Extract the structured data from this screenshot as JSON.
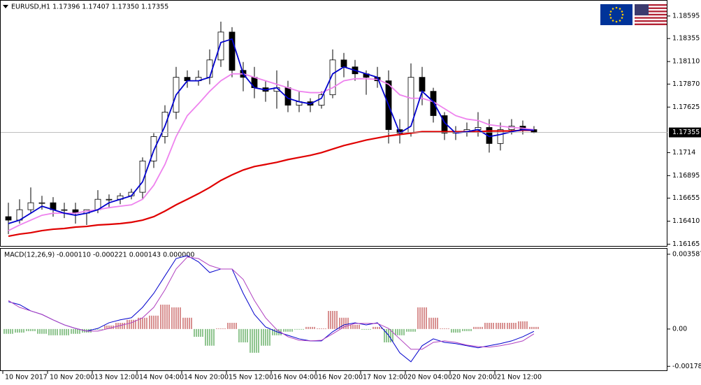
{
  "chart_data": [
    {
      "type": "candlestick",
      "title": "EURUSD,H1  1.17396 1.17407 1.17350 1.17355",
      "categories": [
        "10 Nov 2017",
        null,
        null,
        null,
        "10 Nov 20:00",
        null,
        null,
        null,
        "13 Nov 12:00",
        null,
        null,
        null,
        "14 Nov 04:00",
        null,
        null,
        null,
        "14 Nov 20:00",
        null,
        null,
        null,
        "15 Nov 12:00",
        null,
        null,
        null,
        "16 Nov 04:00",
        null,
        null,
        null,
        "16 Nov 20:00",
        null,
        null,
        null,
        "17 Nov 12:00",
        null,
        null,
        null,
        "20 Nov 04:00",
        null,
        null,
        null,
        "20 Nov 20:00",
        null,
        null,
        null,
        "21 Nov 12:00",
        null,
        null,
        null
      ],
      "open": [
        1.16458,
        1.16421,
        1.16532,
        1.16606,
        1.16606,
        1.16532,
        1.16532,
        1.16495,
        1.16532,
        1.16643,
        1.16643,
        1.1668,
        1.16718,
        1.17051,
        1.17311,
        1.17571,
        1.17942,
        1.17905,
        1.17942,
        1.18127,
        1.18424,
        1.18016,
        1.17942,
        1.17831,
        1.17793,
        1.17831,
        1.17645,
        1.17682,
        1.17645,
        1.17756,
        1.18127,
        1.18053,
        1.17979,
        1.17942,
        1.17905,
        1.17385,
        1.17348,
        1.17942,
        1.17793,
        1.17534,
        1.17348,
        1.17363,
        1.17385,
        1.17408,
        1.17237,
        1.17385,
        1.17422,
        1.17385
      ],
      "high": [
        1.16606,
        1.16643,
        1.16769,
        1.1668,
        1.16666,
        1.16606,
        1.16606,
        1.16532,
        1.1674,
        1.16695,
        1.1671,
        1.16755,
        1.17089,
        1.17348,
        1.17645,
        1.18053,
        1.18016,
        1.18016,
        1.18239,
        1.18535,
        1.18476,
        1.18105,
        1.18053,
        1.17905,
        1.18016,
        1.17905,
        1.17793,
        1.17719,
        1.17793,
        1.18239,
        1.18202,
        1.18127,
        1.18016,
        1.18053,
        1.18016,
        1.17497,
        1.1809,
        1.18053,
        1.17831,
        1.17571,
        1.17422,
        1.1746,
        1.17571,
        1.17497,
        1.1746,
        1.17497,
        1.17482,
        1.17422
      ],
      "low": [
        1.16272,
        1.16384,
        1.16495,
        1.16532,
        1.16458,
        1.16443,
        1.16384,
        1.16369,
        1.16495,
        1.16547,
        1.16591,
        1.16643,
        1.16643,
        1.16977,
        1.17237,
        1.17497,
        1.17831,
        1.17853,
        1.17868,
        1.18053,
        1.17942,
        1.17793,
        1.17719,
        1.17682,
        1.17608,
        1.17571,
        1.17571,
        1.17571,
        1.17608,
        1.17719,
        1.17942,
        1.17905,
        1.17756,
        1.17831,
        1.17237,
        1.17237,
        1.17311,
        1.17645,
        1.1746,
        1.17274,
        1.17274,
        1.17311,
        1.17311,
        1.1714,
        1.17163,
        1.17333,
        1.17333,
        1.17348
      ],
      "close": [
        1.16421,
        1.16532,
        1.16606,
        1.16606,
        1.16532,
        1.16532,
        1.16495,
        1.16532,
        1.16643,
        1.16643,
        1.1668,
        1.16718,
        1.17051,
        1.17311,
        1.17571,
        1.17942,
        1.17905,
        1.17942,
        1.18127,
        1.18424,
        1.18016,
        1.17942,
        1.17831,
        1.17793,
        1.17831,
        1.17645,
        1.17682,
        1.17645,
        1.17756,
        1.18127,
        1.18053,
        1.17979,
        1.17942,
        1.17905,
        1.17385,
        1.17348,
        1.17942,
        1.17793,
        1.17534,
        1.17348,
        1.17363,
        1.17385,
        1.17408,
        1.17237,
        1.17385,
        1.17422,
        1.17385,
        1.17355
      ],
      "color_up": "#ffffff",
      "color_down": "#000000",
      "color_outline": "#000000",
      "series": [
        {
          "color": "#0000cd",
          "values": [
            1.16384,
            1.16421,
            1.16495,
            1.16569,
            1.16532,
            1.16495,
            1.16473,
            1.16495,
            1.16532,
            1.16606,
            1.16643,
            1.1668,
            1.16829,
            1.17163,
            1.17422,
            1.17756,
            1.17905,
            1.17905,
            1.17942,
            1.18313,
            1.1835,
            1.17979,
            1.17831,
            1.17808,
            1.17831,
            1.17719,
            1.17682,
            1.1766,
            1.17719,
            1.17979,
            1.18053,
            1.18016,
            1.17979,
            1.17942,
            1.17645,
            1.17348,
            1.17422,
            1.17793,
            1.17682,
            1.1746,
            1.17348,
            1.17363,
            1.17385,
            1.17311,
            1.17333,
            1.17363,
            1.17385,
            1.17378
          ]
        },
        {
          "color": "#ee82ee",
          "values": [
            1.16309,
            1.16369,
            1.16421,
            1.16473,
            1.16495,
            1.16495,
            1.16495,
            1.16517,
            1.16532,
            1.16554,
            1.16569,
            1.16584,
            1.16643,
            1.16792,
            1.17014,
            1.17311,
            1.17534,
            1.1766,
            1.17793,
            1.17905,
            1.17979,
            1.17979,
            1.17942,
            1.17905,
            1.17868,
            1.17831,
            1.17793,
            1.17779,
            1.17779,
            1.17831,
            1.17905,
            1.17927,
            1.17927,
            1.1792,
            1.17868,
            1.17756,
            1.17719,
            1.17719,
            1.17682,
            1.17608,
            1.17534,
            1.17497,
            1.17482,
            1.17437,
            1.17422,
            1.17408,
            1.174,
            1.17385
          ]
        },
        {
          "color": "#e00000",
          "values": [
            1.1625,
            1.16272,
            1.16287,
            1.16309,
            1.16324,
            1.16332,
            1.16347,
            1.16354,
            1.16369,
            1.16376,
            1.16384,
            1.16398,
            1.16421,
            1.16458,
            1.16517,
            1.16584,
            1.16643,
            1.16703,
            1.16769,
            1.16844,
            1.16903,
            1.16955,
            1.16992,
            1.17014,
            1.17037,
            1.17066,
            1.17089,
            1.17111,
            1.1714,
            1.17178,
            1.17215,
            1.17244,
            1.17274,
            1.17296,
            1.17318,
            1.17333,
            1.17348,
            1.17363,
            1.17363,
            1.17363,
            1.17363,
            1.17363,
            1.17363,
            1.1737,
            1.1737,
            1.1737,
            1.17378,
            1.17378
          ]
        }
      ],
      "last_price": 1.17355,
      "ylim": [
        1.16146,
        1.18758
      ],
      "yticks": [
        1.18595,
        1.18355,
        {
          "value": 1.1811,
          "label": "1.18110"
        },
        {
          "value": 1.1787,
          "label": "1.17870"
        },
        1.17625,
        1.1714,
        1.16895,
        1.16655,
        {
          "value": 1.1641,
          "label": "1.16410"
        },
        1.16165
      ]
    },
    {
      "type": "macd",
      "title": "MACD(12,26,9) -0.000110 -0.000221 0.000143 0.000000",
      "histogram": [
        -0.00023,
        -0.00017,
        -0.0001,
        -0.00023,
        -0.0003,
        -0.0003,
        -0.00023,
        -0.00017,
        -3e-05,
        0.00017,
        0.0003,
        0.00044,
        0.00054,
        0.00064,
        0.00117,
        0.00104,
        0.00054,
        -0.00037,
        -0.0008,
        3e-05,
        0.0003,
        -0.00064,
        -0.00114,
        -0.0008,
        -0.0003,
        -0.00013,
        -3e-05,
        0.0001,
        3e-05,
        0.00087,
        0.00054,
        0.0002,
        -3e-05,
        0.0001,
        -0.00064,
        -0.0003,
        -0.00013,
        0.00104,
        0.00054,
        3e-05,
        -0.00017,
        -0.0001,
        0.0001,
        0.0003,
        0.0003,
        0.0003,
        0.00037,
        0.0001
      ],
      "color_up": "#b22222",
      "color_down": "#228b22",
      "series": [
        {
          "color": "#0000cd",
          "values": [
            0.00131,
            0.00117,
            0.00087,
            0.0007,
            0.00044,
            0.0002,
            3e-05,
            -0.0001,
            3e-05,
            0.0003,
            0.00044,
            0.00054,
            0.00104,
            0.00171,
            0.00255,
            0.00338,
            0.00352,
            0.00322,
            0.00271,
            0.00288,
            0.00288,
            0.00171,
            0.0007,
            0.0001,
            -0.00013,
            -0.0003,
            -0.00047,
            -0.00057,
            -0.00057,
            -0.00013,
            0.0002,
            0.0003,
            0.0002,
            0.0003,
            -0.0003,
            -0.00114,
            -0.00157,
            -0.0008,
            -0.00047,
            -0.00064,
            -0.0007,
            -0.0008,
            -0.0009,
            -0.0008,
            -0.0007,
            -0.00057,
            -0.00037,
            -0.00011
          ]
        },
        {
          "color": "#b040c0",
          "values": [
            0.00137,
            0.00104,
            0.00087,
            0.0007,
            0.00044,
            0.0002,
            3e-05,
            -0.0001,
            -0.0001,
            3e-05,
            0.00017,
            0.0003,
            0.00054,
            0.00104,
            0.00188,
            0.00288,
            0.00345,
            0.00338,
            0.00305,
            0.00288,
            0.00288,
            0.00238,
            0.00137,
            0.00054,
            -3e-05,
            -0.00037,
            -0.00054,
            -0.00057,
            -0.00054,
            -0.00023,
            0.0001,
            0.00027,
            0.00027,
            0.00027,
            3e-05,
            -0.00047,
            -0.00097,
            -0.00097,
            -0.00064,
            -0.00057,
            -0.00064,
            -0.00077,
            -0.00084,
            -0.00087,
            -0.0008,
            -0.0007,
            -0.00057,
            -0.00023
          ]
        }
      ],
      "ylim": [
        -0.00198,
        0.00385
      ],
      "yticks": [
        0.003587,
        {
          "value": 0,
          "label": "0.00"
        },
        -0.001788
      ]
    }
  ]
}
